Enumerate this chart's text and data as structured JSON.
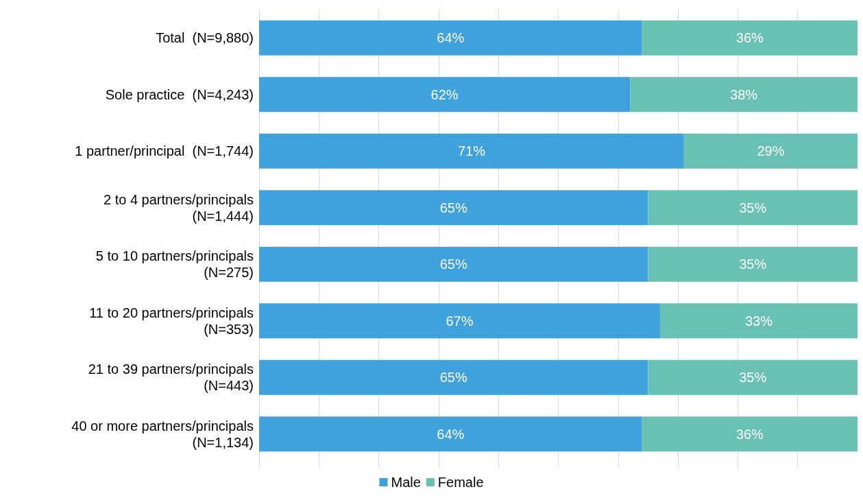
{
  "chart_data": {
    "type": "bar",
    "orientation": "horizontal",
    "stacked": true,
    "categories": [
      "Total  (N=9,880)",
      "Sole practice  (N=4,243)",
      "1 partner/principal  (N=1,744)",
      "2 to 4 partners/principals\n(N=1,444)",
      "5 to 10 partners/principals\n(N=275)",
      "11 to 20 partners/principals\n(N=353)",
      "21 to 39 partners/principals\n(N=443)",
      "40 or more partners/principals\n(N=1,134)"
    ],
    "series": [
      {
        "name": "Male",
        "color": "#3fa2dc",
        "values": [
          64,
          62,
          71,
          65,
          65,
          67,
          65,
          64
        ],
        "value_labels": [
          "64%",
          "62%",
          "71%",
          "65%",
          "65%",
          "67%",
          "65%",
          "64%"
        ]
      },
      {
        "name": "Female",
        "color": "#68c1b3",
        "values": [
          36,
          38,
          29,
          35,
          35,
          33,
          35,
          36
        ],
        "value_labels": [
          "36%",
          "38%",
          "29%",
          "35%",
          "35%",
          "33%",
          "35%",
          "36%"
        ]
      }
    ],
    "xlim": [
      0,
      100
    ],
    "xticks": [
      {
        "value": 0,
        "label": null
      },
      {
        "value": 10,
        "label": null
      },
      {
        "value": 20,
        "label": null
      },
      {
        "value": 30,
        "label": null
      },
      {
        "value": 40,
        "label": null
      },
      {
        "value": 50,
        "label": null
      },
      {
        "value": 60,
        "label": null
      },
      {
        "value": 70,
        "label": null
      },
      {
        "value": 80,
        "label": null
      },
      {
        "value": 90,
        "label": null
      },
      {
        "value": 100,
        "label": null
      }
    ],
    "grid": "x",
    "legend": "bottom",
    "tick_labels": "y"
  }
}
